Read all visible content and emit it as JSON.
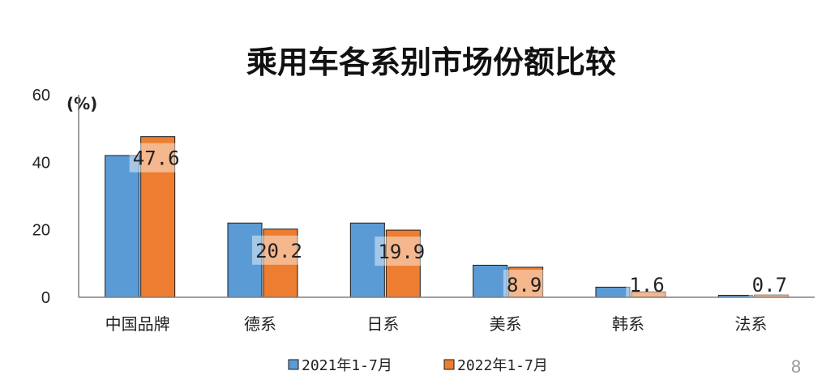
{
  "chart_data": {
    "type": "bar",
    "title": "乘用车各系别市场份额比较",
    "ylabel": "(%)",
    "ylim": [
      0,
      60
    ],
    "yticks": [
      "0",
      "20",
      "40",
      "60"
    ],
    "categories": [
      "中国品牌",
      "德系",
      "日系",
      "美系",
      "韩系",
      "法系"
    ],
    "series": [
      {
        "name": "2021年1-7月",
        "color": "#5b9bd5",
        "values": [
          42,
          22,
          22,
          9.5,
          3,
          0.6
        ]
      },
      {
        "name": "2022年1-7月",
        "color": "#ed7d31",
        "values": [
          47.6,
          20.2,
          19.9,
          8.9,
          1.6,
          0.7
        ]
      }
    ],
    "data_labels": [
      "47.6",
      "20.2",
      "19.9",
      "8.9",
      "1.6",
      "0.7"
    ],
    "legend_position": "bottom",
    "grid": false
  },
  "page_number": "8"
}
